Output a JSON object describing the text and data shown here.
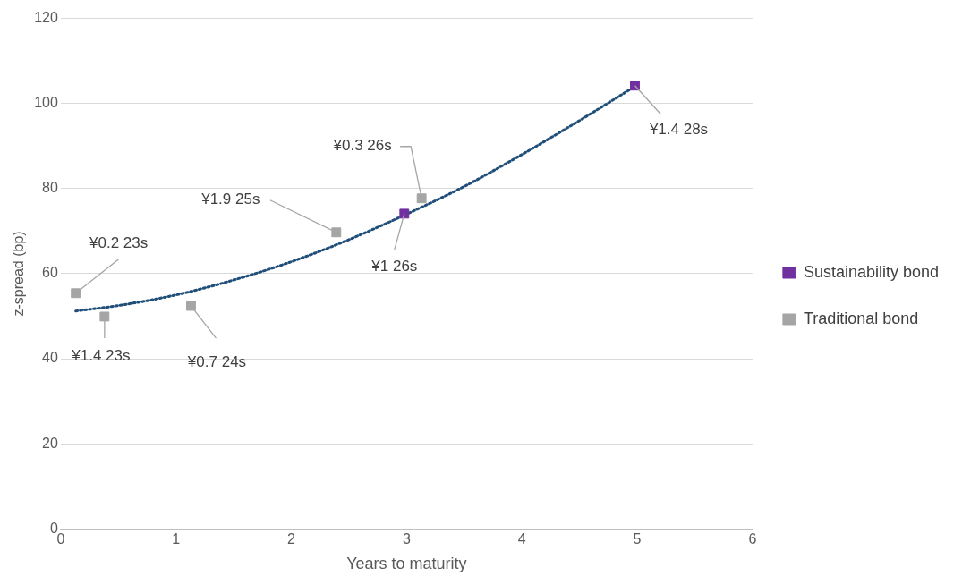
{
  "chart_data": {
    "type": "scatter",
    "xlabel": "Years to maturity",
    "ylabel": "z-spread (bp)",
    "xlim": [
      0,
      6
    ],
    "xticks": [
      0,
      1,
      2,
      3,
      4,
      5,
      6
    ],
    "ylim": [
      0,
      120
    ],
    "yticks": [
      0,
      20,
      40,
      60,
      80,
      100,
      120
    ],
    "grid": "y",
    "legend": "right",
    "marker": "square",
    "series": [
      {
        "name": "Sustainability bond",
        "color": "#7030a0",
        "x": [
          2.98,
          4.98
        ],
        "values": [
          74.1,
          104.2
        ]
      },
      {
        "name": "Traditional bond",
        "color": "#a5a5a5",
        "x": [
          0.13,
          0.38,
          1.13,
          2.39,
          3.13
        ],
        "values": [
          55.4,
          49.9,
          52.4,
          69.7,
          77.7
        ]
      },
      {
        "type": "line",
        "color": "#1f4e79",
        "line_style": "dotted",
        "marker": "none",
        "x": [
          0.13,
          0.5,
          1,
          1.5,
          2,
          2.5,
          3,
          3.5,
          4,
          4.5,
          4.98
        ],
        "values": [
          51.2,
          52.5,
          55,
          58.5,
          62.8,
          68,
          74,
          80.5,
          88,
          96,
          104
        ]
      }
    ],
    "annotations": [
      {
        "text": "¥0.2 23s",
        "x": 0.13,
        "y": 55.4
      },
      {
        "text": "¥1.4 23s",
        "x": 0.38,
        "y": 49.9
      },
      {
        "text": "¥0.7 24s",
        "x": 1.13,
        "y": 52.4
      },
      {
        "text": "¥1.9 25s",
        "x": 2.39,
        "y": 69.7
      },
      {
        "text": "¥0.3 26s",
        "x": 3.13,
        "y": 77.7
      },
      {
        "text": "¥1 26s",
        "x": 2.98,
        "y": 74.1
      },
      {
        "text": "¥1.4 28s",
        "x": 4.98,
        "y": 104.2
      }
    ]
  }
}
